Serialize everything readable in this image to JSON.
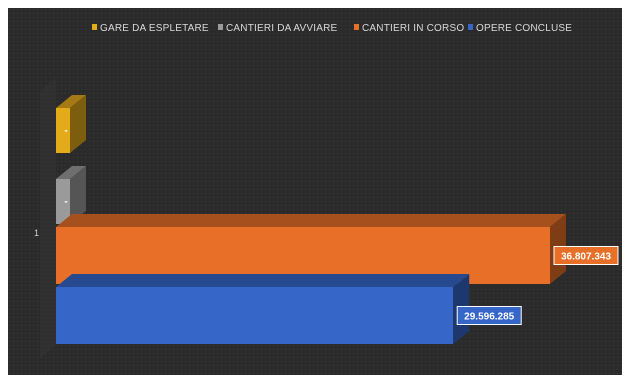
{
  "chart_data": {
    "type": "bar",
    "orientation": "horizontal",
    "style": "3d-clustered",
    "categories": [
      "1"
    ],
    "series": [
      {
        "name": "GARE DA ESPLETARE",
        "values": [
          0
        ],
        "label": "-",
        "color": "#e3aa1a"
      },
      {
        "name": "CANTIERI DA AVVIARE",
        "values": [
          0
        ],
        "label": "-",
        "color": "#9a9a9a"
      },
      {
        "name": "CANTIERI IN CORSO",
        "values": [
          36807343
        ],
        "label": "36.807.343",
        "color": "#e76f28"
      },
      {
        "name": "OPERE CONCLUSE",
        "values": [
          29596285
        ],
        "label": "29.596.285",
        "color": "#3566c8"
      }
    ],
    "legend_position": "top",
    "grid": false,
    "background": "#2a2a2a"
  }
}
